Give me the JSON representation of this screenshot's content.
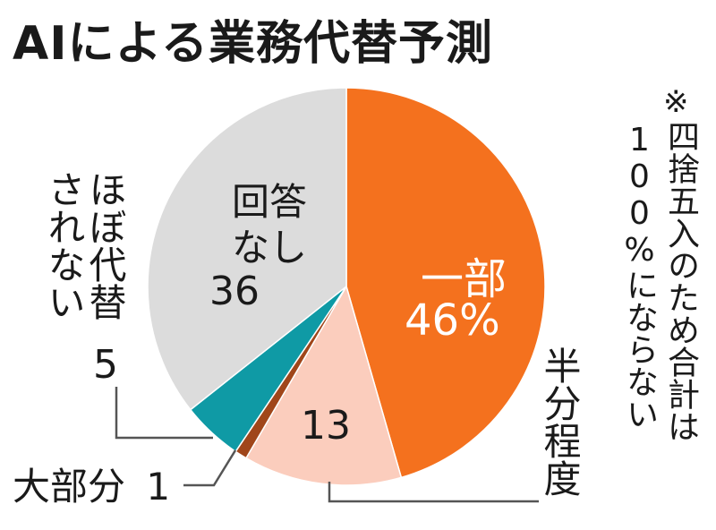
{
  "title": "AIによる業務代替予測",
  "note": {
    "mark": "※",
    "line1": "四捨五入のため合計は",
    "line2": "100%にならない"
  },
  "labels": {
    "partial": "一部",
    "partial_value": "46%",
    "half_line1": "半分",
    "half_line2": "程度",
    "half_value": "13",
    "largely": "大部分",
    "largely_value": "1",
    "almost_none_line1": "ほぼ代替",
    "almost_none_line2": "されない",
    "almost_none_value": "5",
    "no_answer_line1": "回答",
    "no_answer_line2": "なし",
    "no_answer_value": "36"
  },
  "colors": {
    "partial": "#f4711e",
    "half": "#fbcdbd",
    "largely": "#a0461a",
    "almost_none": "#0f9aa5",
    "no_answer": "#dcdcdc",
    "leader": "#555555"
  },
  "chart_data": {
    "type": "pie",
    "title": "AIによる業務代替予測",
    "unit": "%",
    "slices": [
      {
        "label": "一部",
        "value": 46
      },
      {
        "label": "半分程度",
        "value": 13
      },
      {
        "label": "大部分",
        "value": 1
      },
      {
        "label": "ほぼ代替されない",
        "value": 5
      },
      {
        "label": "回答なし",
        "value": 36
      }
    ],
    "start": "12 o'clock",
    "direction": "clockwise",
    "note": "※四捨五入のため合計は100%にならない"
  }
}
